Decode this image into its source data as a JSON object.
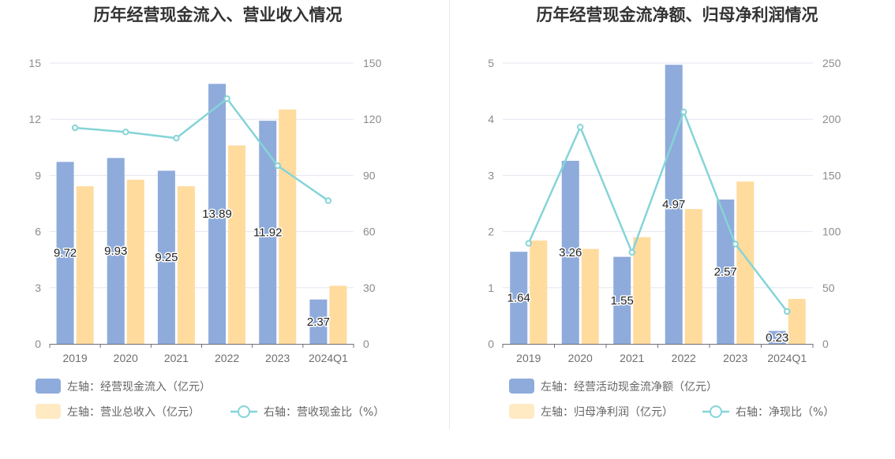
{
  "charts": [
    {
      "title": "历年经营现金流入、营业收入情况",
      "categories": [
        "2019",
        "2020",
        "2021",
        "2022",
        "2023",
        "2024Q1"
      ],
      "left_axis": {
        "ticks": [
          "0",
          "3",
          "6",
          "9",
          "12",
          "15"
        ],
        "range": [
          0,
          15
        ]
      },
      "right_axis": {
        "ticks": [
          "0",
          "30",
          "60",
          "90",
          "120",
          "150"
        ],
        "range": [
          0,
          150
        ]
      },
      "bar_series": [
        {
          "name": "左轴：经营现金流入（亿元）",
          "color": "#8eabdb",
          "values": [
            9.72,
            9.93,
            9.25,
            13.89,
            11.92,
            2.37
          ],
          "labels": [
            "9.72",
            "9.93",
            "9.25",
            "13.89",
            "11.92",
            "2.37"
          ]
        },
        {
          "name": "左轴：营业总收入（亿元）",
          "color": "#ffdb9e",
          "values": [
            8.42,
            8.77,
            8.42,
            10.6,
            12.52,
            3.1
          ]
        }
      ],
      "line_series": {
        "name": "右轴：营收现金比（%）",
        "color": "#85d4d8",
        "values": [
          115.4,
          113.2,
          109.9,
          131.0,
          95.2,
          76.5
        ]
      }
    },
    {
      "title": "历年经营现金流净额、归母净利润情况",
      "categories": [
        "2019",
        "2020",
        "2021",
        "2022",
        "2023",
        "2024Q1"
      ],
      "left_axis": {
        "ticks": [
          "0",
          "1",
          "2",
          "3",
          "4",
          "5"
        ],
        "range": [
          0,
          5
        ]
      },
      "right_axis": {
        "ticks": [
          "0",
          "50",
          "100",
          "150",
          "200",
          "250"
        ],
        "range": [
          0,
          250
        ]
      },
      "bar_series": [
        {
          "name": "左轴：经营活动现金流净额（亿元）",
          "color": "#8eabdb",
          "values": [
            1.64,
            3.26,
            1.55,
            4.97,
            2.57,
            0.23
          ],
          "labels": [
            "1.64",
            "3.26",
            "1.55",
            "4.97",
            "2.57",
            "0.23"
          ]
        },
        {
          "name": "左轴：归母净利润（亿元）",
          "color": "#ffdb9e",
          "values": [
            1.84,
            1.69,
            1.9,
            2.4,
            2.89,
            0.8
          ]
        }
      ],
      "line_series": {
        "name": "右轴：净现比（%）",
        "color": "#85d4d8",
        "values": [
          89.5,
          193.0,
          81.4,
          206.5,
          88.9,
          28.8
        ]
      }
    }
  ],
  "chart_data": [
    {
      "type": "bar",
      "title": "历年经营现金流入、营业收入情况",
      "categories": [
        "2019",
        "2020",
        "2021",
        "2022",
        "2023",
        "2024Q1"
      ],
      "series": [
        {
          "name": "左轴：经营现金流入（亿元）",
          "axis": "left",
          "type": "bar",
          "values": [
            9.72,
            9.93,
            9.25,
            13.89,
            11.92,
            2.37
          ]
        },
        {
          "name": "左轴：营业总收入（亿元）",
          "axis": "left",
          "type": "bar",
          "values": [
            8.42,
            8.77,
            8.42,
            10.6,
            12.52,
            3.1
          ]
        },
        {
          "name": "右轴：营收现金比（%）",
          "axis": "right",
          "type": "line",
          "values": [
            115.4,
            113.2,
            109.9,
            131.0,
            95.2,
            76.5
          ]
        }
      ],
      "ylim_left": [
        0,
        15
      ],
      "ylim_right": [
        0,
        150
      ],
      "grid": true,
      "legend": "bottom"
    },
    {
      "type": "bar",
      "title": "历年经营现金流净额、归母净利润情况",
      "categories": [
        "2019",
        "2020",
        "2021",
        "2022",
        "2023",
        "2024Q1"
      ],
      "series": [
        {
          "name": "左轴：经营活动现金流净额（亿元）",
          "axis": "left",
          "type": "bar",
          "values": [
            1.64,
            3.26,
            1.55,
            4.97,
            2.57,
            0.23
          ]
        },
        {
          "name": "左轴：归母净利润（亿元）",
          "axis": "left",
          "type": "bar",
          "values": [
            1.84,
            1.69,
            1.9,
            2.4,
            2.89,
            0.8
          ]
        },
        {
          "name": "右轴：净现比（%）",
          "axis": "right",
          "type": "line",
          "values": [
            89.5,
            193.0,
            81.4,
            206.5,
            88.9,
            28.8
          ]
        }
      ],
      "ylim_left": [
        0,
        5
      ],
      "ylim_right": [
        0,
        250
      ],
      "grid": true,
      "legend": "bottom"
    }
  ]
}
